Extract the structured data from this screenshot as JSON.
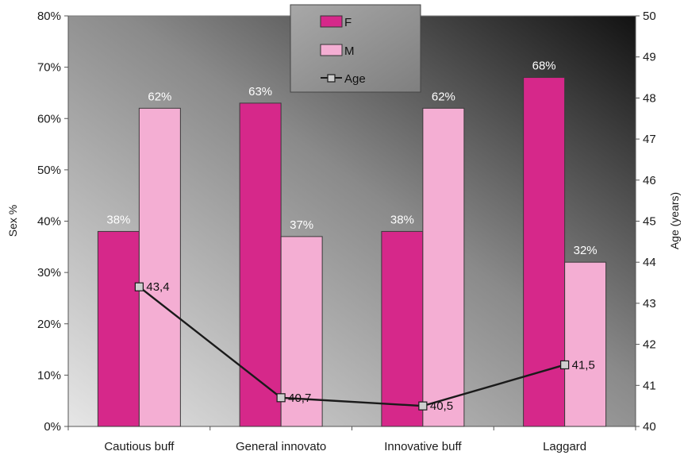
{
  "chart_data": {
    "type": "bar",
    "categories": [
      "Cautious buff",
      "General innovato",
      "Innovative buff",
      "Laggard"
    ],
    "series": [
      {
        "name": "F",
        "values": [
          38,
          63,
          38,
          68
        ],
        "labels": [
          "38%",
          "63%",
          "38%",
          "68%"
        ],
        "color": "#d6288a"
      },
      {
        "name": "M",
        "values": [
          62,
          37,
          62,
          32
        ],
        "labels": [
          "62%",
          "37%",
          "62%",
          "32%"
        ],
        "color": "#f4aed3"
      }
    ],
    "line_series": {
      "name": "Age",
      "axis": "right",
      "values": [
        43.4,
        40.7,
        40.5,
        41.5
      ],
      "labels": [
        "43,4",
        "40,7",
        "40,5",
        "41,5"
      ],
      "color": "#1a1a1a"
    },
    "ylabel": "Sex %",
    "y2label": "Age (years)",
    "ylim": [
      0,
      80
    ],
    "y2lim": [
      40,
      50
    ],
    "yticks": [
      "0%",
      "10%",
      "20%",
      "30%",
      "40%",
      "50%",
      "60%",
      "70%",
      "80%"
    ],
    "y2ticks": [
      "40",
      "41",
      "42",
      "43",
      "44",
      "45",
      "46",
      "47",
      "48",
      "49",
      "50"
    ],
    "legend_position": "top-center",
    "grid": false,
    "background": "gradient gray (light left to dark right)"
  }
}
